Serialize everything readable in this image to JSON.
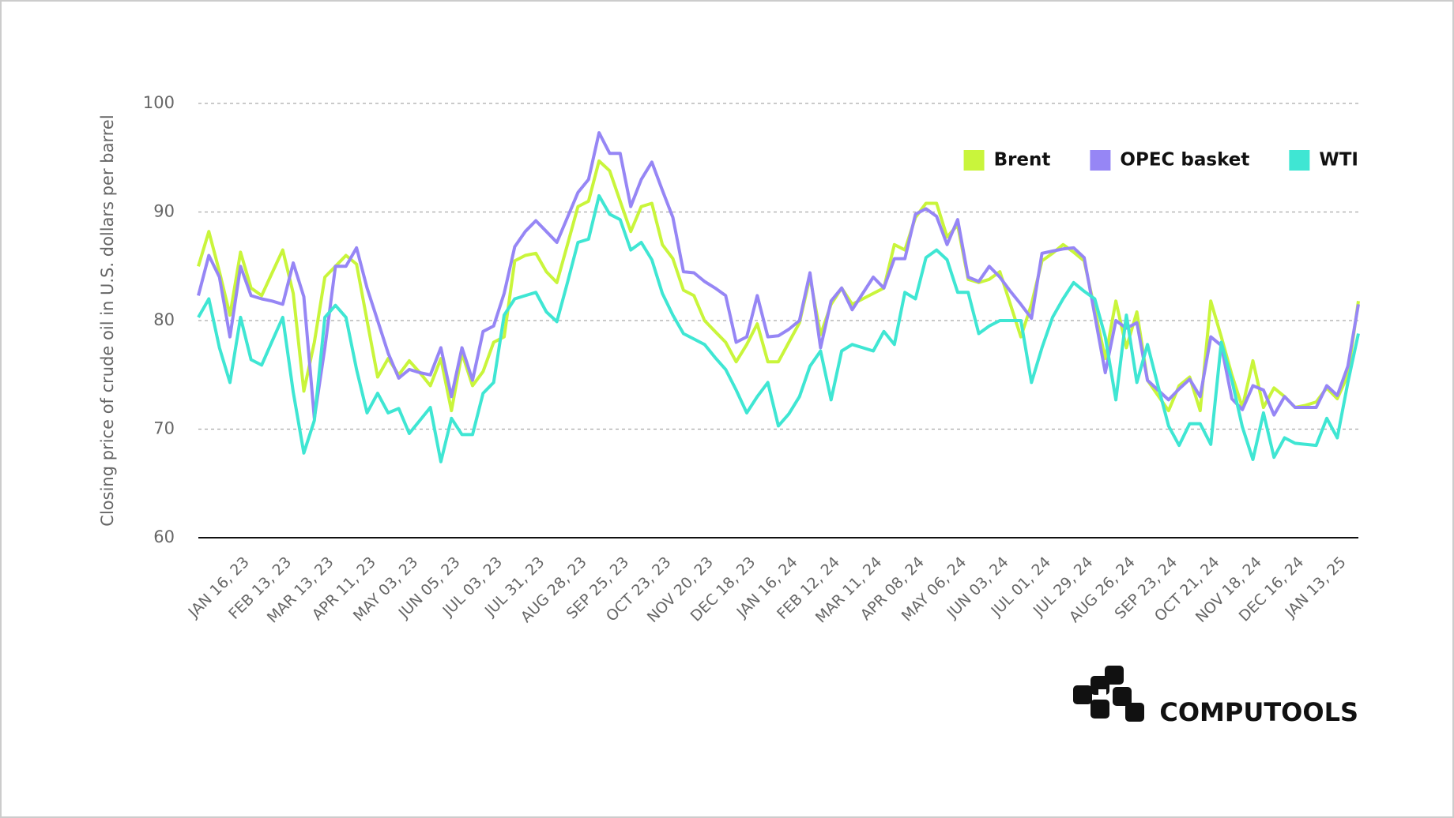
{
  "chart_data": {
    "type": "line",
    "y_label": "Closing price of crude oil in U.S. dollars per barrel",
    "ylim": [
      60,
      100
    ],
    "yticks": [
      60,
      70,
      80,
      90,
      100
    ],
    "grid": true,
    "legend": "upper-right",
    "brand": "COMPUTOOLS",
    "categories": [
      null,
      null,
      null,
      null,
      "JAN 16, 23",
      null,
      null,
      null,
      "FEB 13, 23",
      null,
      null,
      null,
      "MAR 13, 23",
      null,
      null,
      null,
      "APR 11, 23",
      null,
      null,
      null,
      "MAY 03, 23",
      null,
      null,
      null,
      "JUN 05, 23",
      null,
      null,
      null,
      "JUL 03, 23",
      null,
      null,
      null,
      "JUL 31, 23",
      null,
      null,
      null,
      "AUG 28, 23",
      null,
      null,
      null,
      "SEP 25, 23",
      null,
      null,
      null,
      "OCT 23, 23",
      null,
      null,
      null,
      "NOV 20, 23",
      null,
      null,
      null,
      "DEC 18, 23",
      null,
      null,
      null,
      "JAN 16, 24",
      null,
      null,
      null,
      "FEB 12, 24",
      null,
      null,
      null,
      "MAR 11, 24",
      null,
      null,
      null,
      "APR 08, 24",
      null,
      null,
      null,
      "MAY 06, 24",
      null,
      null,
      null,
      "JUN 03, 24",
      null,
      null,
      null,
      "JUL 01, 24",
      null,
      null,
      null,
      "JUL 29, 24",
      null,
      null,
      null,
      "AUG 26, 24",
      null,
      null,
      null,
      "SEP 23, 24",
      null,
      null,
      null,
      "OCT 21, 24",
      null,
      null,
      null,
      "NOV 18, 24",
      null,
      null,
      null,
      "DEC 16, 24",
      null,
      null,
      null,
      "JAN 13, 25",
      null,
      null
    ],
    "series": [
      {
        "name": "Brent",
        "color": "#c9f53b",
        "values": [
          85,
          88.2,
          84.5,
          80.5,
          86.3,
          83,
          82.3,
          84.4,
          86.5,
          82.5,
          73.5,
          78,
          84,
          85,
          86,
          85.2,
          80,
          74.8,
          76.5,
          75,
          76.3,
          75.2,
          74,
          76.5,
          71.7,
          77,
          74,
          75.3,
          78,
          78.5,
          85.5,
          86,
          86.2,
          84.5,
          83.5,
          87,
          90.5,
          91,
          94.7,
          93.8,
          91,
          88.2,
          90.5,
          90.8,
          87,
          85.7,
          82.8,
          82.3,
          80,
          79,
          78,
          76.2,
          77.8,
          79.7,
          76.2,
          76.2,
          78,
          79.8,
          84,
          78.7,
          81.5,
          83,
          81.5,
          82,
          82.5,
          83,
          87,
          86.5,
          89.5,
          90.8,
          90.8,
          87.7,
          88.8,
          83.8,
          83.5,
          83.8,
          84.5,
          81.5,
          78.5,
          81.5,
          85.5,
          86.2,
          87,
          86.3,
          85.5,
          81,
          76.5,
          81.8,
          77.5,
          80.8,
          74.5,
          73.1,
          71.7,
          74,
          74.8,
          71.7,
          81.8,
          78.5,
          75,
          72,
          76.3,
          72,
          73.8,
          73,
          72,
          72.2,
          72.5,
          73.8,
          72.8,
          75,
          81.8
        ]
      },
      {
        "name": "OPEC basket",
        "color": "#9686f5",
        "values": [
          82.3,
          86,
          84,
          78.5,
          85,
          82.3,
          82,
          81.8,
          81.5,
          85.3,
          82.2,
          71,
          77.5,
          85,
          85,
          86.7,
          83,
          80,
          77,
          74.7,
          75.5,
          75.2,
          75,
          77.5,
          73,
          77.5,
          74.5,
          79,
          79.5,
          82.5,
          86.8,
          88.2,
          89.2,
          88.2,
          87.2,
          89.5,
          91.8,
          93,
          97.3,
          95.4,
          95.4,
          90.5,
          93,
          94.6,
          92,
          89.5,
          84.5,
          84.4,
          83.6,
          83,
          82.3,
          78,
          78.5,
          82.3,
          78.5,
          78.6,
          79.2,
          80,
          84.4,
          77.5,
          81.8,
          83,
          81,
          82.5,
          84,
          83,
          85.7,
          85.7,
          89.8,
          90.3,
          89.6,
          87,
          89.3,
          84,
          83.6,
          85,
          84,
          82.7,
          81.5,
          80.2,
          86.2,
          86.4,
          86.6,
          86.7,
          85.8,
          80.5,
          75.2,
          80,
          79.3,
          79.8,
          74.5,
          73.6,
          72.7,
          73.7,
          74.6,
          73,
          78.5,
          77.7,
          72.8,
          71.8,
          74,
          73.6,
          71.3,
          73,
          72,
          72,
          72,
          74,
          73.1,
          75.8,
          81.5
        ]
      },
      {
        "name": "WTI",
        "color": "#3fe6d3",
        "values": [
          80.3,
          82,
          77.5,
          74.3,
          80.3,
          76.4,
          75.9,
          78.1,
          80.3,
          73.4,
          67.8,
          70.8,
          80.3,
          81.4,
          80.3,
          75.5,
          71.5,
          73.3,
          71.5,
          71.9,
          69.6,
          70.8,
          72,
          67,
          71,
          69.5,
          69.5,
          73.3,
          74.3,
          80.5,
          82,
          82.3,
          82.6,
          80.8,
          79.9,
          83.5,
          87.2,
          87.5,
          91.5,
          89.8,
          89.3,
          86.5,
          87.2,
          85.6,
          82.5,
          80.5,
          78.8,
          78.3,
          77.8,
          76.6,
          75.5,
          73.6,
          71.5,
          73,
          74.3,
          70.3,
          71.4,
          73,
          75.8,
          77.2,
          72.7,
          77.2,
          77.8,
          77.5,
          77.2,
          79,
          77.8,
          82.6,
          82,
          85.8,
          86.5,
          85.6,
          82.6,
          82.6,
          78.8,
          79.5,
          80,
          80,
          80,
          74.3,
          77.5,
          80.3,
          82,
          83.5,
          82.7,
          82,
          78.5,
          72.7,
          80.5,
          74.3,
          77.8,
          74,
          70.3,
          68.5,
          70.5,
          70.5,
          68.6,
          78,
          74.5,
          70.2,
          67.2,
          71.5,
          67.4,
          69.2,
          68.7,
          68.6,
          68.5,
          71,
          69.2,
          74.3,
          78.8
        ]
      }
    ]
  }
}
